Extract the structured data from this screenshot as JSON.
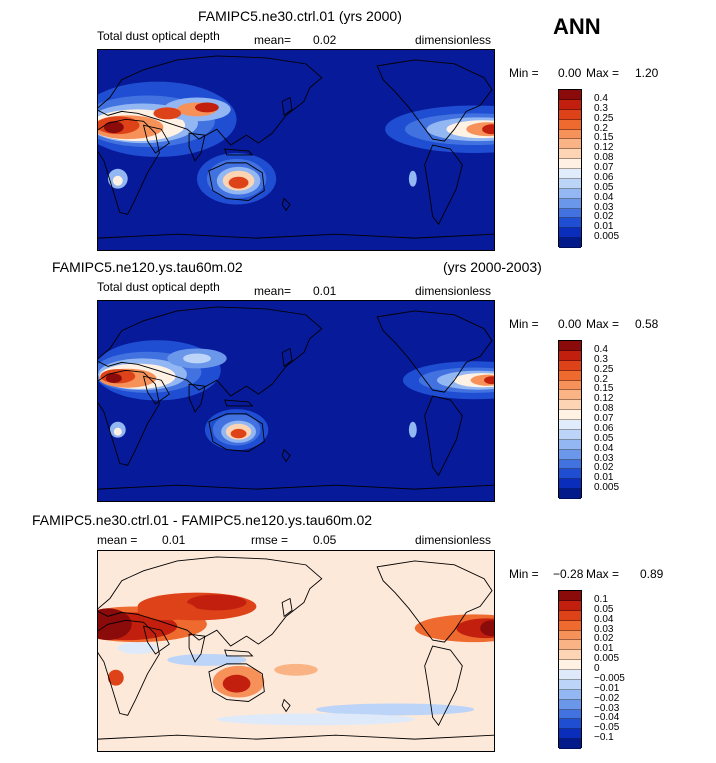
{
  "chart_data": [
    {
      "type": "heatmap",
      "title": "FAMIPC5.ne30.ctrl.01 (yrs 2000)",
      "season": "ANN",
      "variable": "Total dust optical depth",
      "mean_label": "mean=",
      "mean": "0.02",
      "units": "dimensionless",
      "min_label": "Min =",
      "min": "0.00",
      "max_label": "Max =",
      "max": "1.20",
      "colorbar_levels": [
        "0.4",
        "0.3",
        "0.25",
        "0.2",
        "0.15",
        "0.12",
        "0.08",
        "0.07",
        "0.06",
        "0.05",
        "0.04",
        "0.03",
        "0.02",
        "0.01",
        "0.005"
      ],
      "colorbar_colors": [
        "#8b0a0a",
        "#c21f0e",
        "#de4218",
        "#ef6a2f",
        "#f6915a",
        "#fab385",
        "#fdd5b4",
        "#fff1e4",
        "#e0ecfc",
        "#bcd4f8",
        "#93b7f2",
        "#6a97ea",
        "#4272e0",
        "#1f4ed2",
        "#0a2dbb",
        "#031a8a"
      ]
    },
    {
      "type": "heatmap",
      "title": "FAMIPC5.ne120.ys.tau60m.02",
      "years": "(yrs 2000-2003)",
      "variable": "Total dust optical depth",
      "mean_label": "mean=",
      "mean": "0.01",
      "units": "dimensionless",
      "min_label": "Min =",
      "min": "0.00",
      "max_label": "Max =",
      "max": "0.58",
      "colorbar_levels": [
        "0.4",
        "0.3",
        "0.25",
        "0.2",
        "0.15",
        "0.12",
        "0.08",
        "0.07",
        "0.06",
        "0.05",
        "0.04",
        "0.03",
        "0.02",
        "0.01",
        "0.005"
      ],
      "colorbar_colors": [
        "#8b0a0a",
        "#c21f0e",
        "#de4218",
        "#ef6a2f",
        "#f6915a",
        "#fab385",
        "#fdd5b4",
        "#fff1e4",
        "#e0ecfc",
        "#bcd4f8",
        "#93b7f2",
        "#6a97ea",
        "#4272e0",
        "#1f4ed2",
        "#0a2dbb",
        "#031a8a"
      ]
    },
    {
      "type": "heatmap",
      "title": "FAMIPC5.ne30.ctrl.01 - FAMIPC5.ne120.ys.tau60m.02",
      "mean_label": "mean =",
      "mean": "0.01",
      "rmse_label": "rmse =",
      "rmse": "0.05",
      "units": "dimensionless",
      "min_label": "Min =",
      "min": "−0.28",
      "max_label": "Max =",
      "max": "0.89",
      "colorbar_levels": [
        "0.1",
        "0.05",
        "0.04",
        "0.03",
        "0.02",
        "0.01",
        "0.005",
        "0",
        "−0.005",
        "−0.01",
        "−0.02",
        "−0.03",
        "−0.04",
        "−0.05",
        "−0.1"
      ],
      "colorbar_colors": [
        "#8b0a0a",
        "#c21f0e",
        "#de4218",
        "#ef6a2f",
        "#f6915a",
        "#fab385",
        "#fdd5b4",
        "#fff1e4",
        "#deeaf9",
        "#bcd4f8",
        "#93b7f2",
        "#6a97ea",
        "#4272e0",
        "#1f4ed2",
        "#0a2dbb",
        "#031a8a"
      ]
    }
  ]
}
